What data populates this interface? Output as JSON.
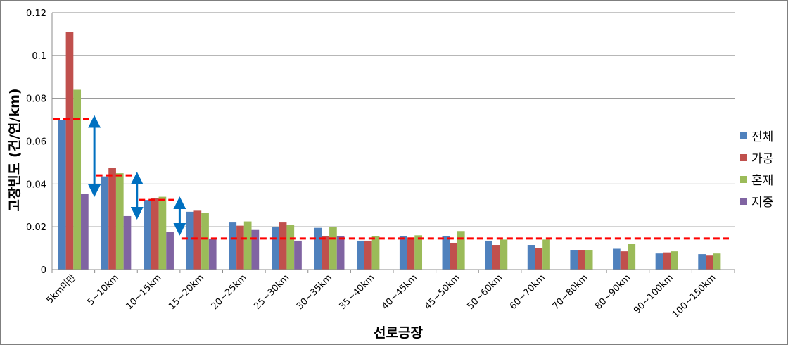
{
  "chart_data": {
    "type": "bar",
    "xlabel": "선로긍장",
    "ylabel": "고장빈도 (건/연/km)",
    "ylim": [
      0,
      0.12
    ],
    "y_ticks": [
      "0",
      "0.02",
      "0.04",
      "0.06",
      "0.08",
      "0.1",
      "0.12"
    ],
    "grid": true,
    "legend_position": "right",
    "categories": [
      "5km미만",
      "5~10km",
      "10~15km",
      "15~20km",
      "20~25km",
      "25~30km",
      "30~35km",
      "35~40km",
      "40~45km",
      "45~50km",
      "50~60km",
      "60~70km",
      "70~80km",
      "80~90km",
      "90~100km",
      "100~150km"
    ],
    "series": [
      {
        "name": "전체",
        "color": "#4f81bd",
        "values": [
          0.07,
          0.0435,
          0.0325,
          0.027,
          0.022,
          0.02,
          0.0195,
          0.0135,
          0.0155,
          0.0155,
          0.0135,
          0.0115,
          0.0092,
          0.0097,
          0.0075,
          0.0072
        ]
      },
      {
        "name": "가공",
        "color": "#c0504d",
        "values": [
          0.111,
          0.0475,
          0.0335,
          0.0275,
          0.0205,
          0.022,
          0.0155,
          0.0135,
          0.015,
          0.0125,
          0.0115,
          0.01,
          0.0092,
          0.0085,
          0.008,
          0.0065
        ]
      },
      {
        "name": "혼재",
        "color": "#9bbb59",
        "values": [
          0.084,
          0.045,
          0.034,
          0.0265,
          0.0225,
          0.021,
          0.02,
          0.0155,
          0.016,
          0.018,
          0.014,
          0.014,
          0.0092,
          0.012,
          0.0085,
          0.0075
        ]
      },
      {
        "name": "지중",
        "color": "#8064a2",
        "values": [
          0.0355,
          0.025,
          0.0175,
          0.0145,
          0.0185,
          0.0135,
          0.0155,
          null,
          null,
          null,
          null,
          null,
          null,
          null,
          null,
          null
        ]
      }
    ],
    "annotations": {
      "reference_lines": [
        {
          "y": 0.0705,
          "from_category": 0,
          "to_category": 0,
          "color": "#ff0000",
          "style": "dashed"
        },
        {
          "y": 0.044,
          "from_category": 1,
          "to_category": 1,
          "color": "#ff0000",
          "style": "dashed"
        },
        {
          "y": 0.0325,
          "from_category": 2,
          "to_category": 2,
          "color": "#ff0000",
          "style": "dashed"
        },
        {
          "y": 0.0145,
          "from_category": 3,
          "to_category": 15,
          "color": "#ff0000",
          "style": "dashed"
        }
      ],
      "arrows": [
        {
          "category": 0,
          "y_from": 0.0355,
          "y_to": 0.0705,
          "color": "#0070c0"
        },
        {
          "category": 1,
          "y_from": 0.025,
          "y_to": 0.044,
          "color": "#0070c0"
        },
        {
          "category": 2,
          "y_from": 0.0175,
          "y_to": 0.0325,
          "color": "#0070c0"
        }
      ]
    }
  }
}
